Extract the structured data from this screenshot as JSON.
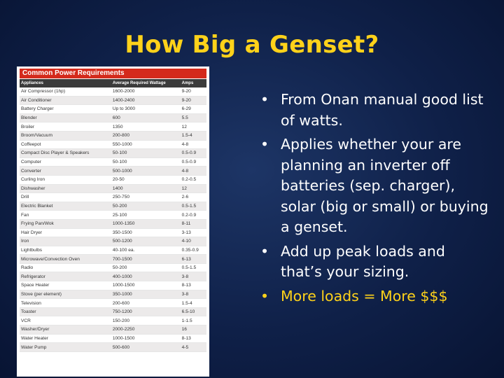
{
  "slide": {
    "title": "How Big a Genset?"
  },
  "power_table": {
    "title": "Common Power Requirements",
    "headers": [
      "Appliances",
      "Average Required Wattage",
      "Amps"
    ],
    "rows": [
      [
        "Air Compressor (1hp)",
        "1600-2000",
        "9-20"
      ],
      [
        "Air Conditioner",
        "1400-2400",
        "9-20"
      ],
      [
        "Battery Charger",
        "Up to 3000",
        "6-29"
      ],
      [
        "Blender",
        "600",
        "5.5"
      ],
      [
        "Broiler",
        "1350",
        "12"
      ],
      [
        "Broom/Vacuum",
        "200-800",
        "1.5-4"
      ],
      [
        "Coffeepot",
        "550-1000",
        "4-8"
      ],
      [
        "Compact Disc Player & Speakers",
        "50-100",
        "0.5-0.9"
      ],
      [
        "Computer",
        "50-100",
        "0.5-0.9"
      ],
      [
        "Converter",
        "500-1000",
        "4-8"
      ],
      [
        "Curling Iron",
        "20-50",
        "0.2-0.5"
      ],
      [
        "Dishwasher",
        "1400",
        "12"
      ],
      [
        "Drill",
        "250-750",
        "2-6"
      ],
      [
        "Electric Blanket",
        "50-200",
        "0.5-1.5"
      ],
      [
        "Fan",
        "25-100",
        "0.2-0.9"
      ],
      [
        "Frying Pan/Wok",
        "1000-1350",
        "8-11"
      ],
      [
        "Hair Dryer",
        "350-1500",
        "3-13"
      ],
      [
        "Iron",
        "500-1200",
        "4-10"
      ],
      [
        "Lightbulbs",
        "40-100 ea.",
        "0.35-0.9"
      ],
      [
        "Microwave/Convection Oven",
        "700-1500",
        "6-13"
      ],
      [
        "Radio",
        "50-200",
        "0.5-1.5"
      ],
      [
        "Refrigerator",
        "400-1000",
        "3-8"
      ],
      [
        "Space Heater",
        "1000-1500",
        "8-13"
      ],
      [
        "Stove (per element)",
        "350-1000",
        "3-8"
      ],
      [
        "Television",
        "200-600",
        "1.5-4"
      ],
      [
        "Toaster",
        "750-1200",
        "6.5-10"
      ],
      [
        "VCR",
        "150-200",
        "1-1.5"
      ],
      [
        "Washer/Dryer",
        "2000-2250",
        "16"
      ],
      [
        "Water Heater",
        "1000-1500",
        "8-13"
      ],
      [
        "Water Pump",
        "500-600",
        "4-5"
      ]
    ]
  },
  "bullets": [
    "From Onan manual good list of watts.",
    "Applies whether your are planning an inverter off batteries (sep. charger), solar (big or small) or buying a genset.",
    "Add up peak loads and that’s your sizing.",
    "More loads = More $$$"
  ],
  "bullet_glyph": "•",
  "colors": {
    "title": "#ffd21a",
    "highlight": "#ffd21a",
    "banner": "#d42a1c"
  }
}
